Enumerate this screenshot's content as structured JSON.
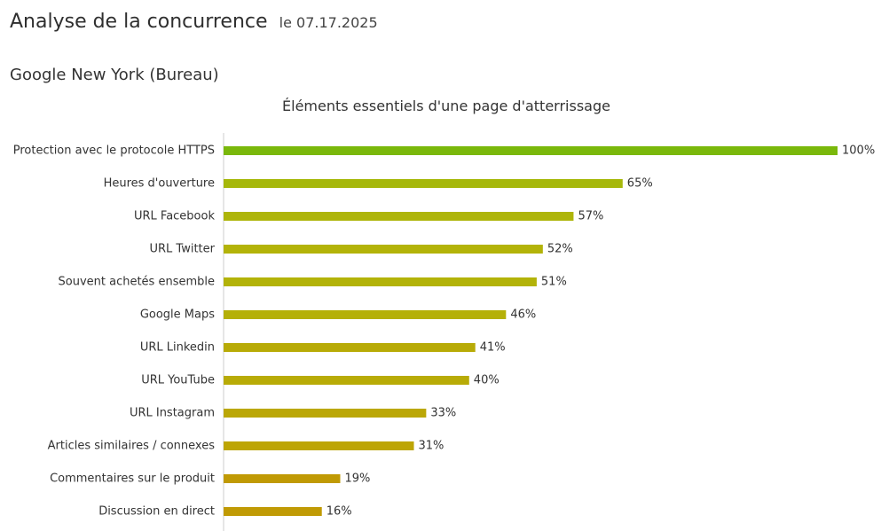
{
  "header": {
    "title": "Analyse de la concurrence",
    "date": "le 07.17.2025"
  },
  "section": {
    "title": "Google New York (Bureau)"
  },
  "chart_data": {
    "type": "bar",
    "orientation": "horizontal",
    "title": "Éléments essentiels d'une page d'atterrissage",
    "xlabel": "",
    "ylabel": "",
    "xlim": [
      0,
      100
    ],
    "grid": false,
    "legend": "none",
    "value_suffix": "%",
    "categories": [
      "Protection avec le protocole HTTPS",
      "Heures d'ouverture",
      "URL Facebook",
      "URL Twitter",
      "Souvent achetés ensemble",
      "Google Maps",
      "URL Linkedin",
      "URL YouTube",
      "URL Instagram",
      "Articles similaires / connexes",
      "Commentaires sur le produit",
      "Discussion en direct"
    ],
    "values": [
      100,
      65,
      57,
      52,
      51,
      46,
      41,
      40,
      33,
      31,
      19,
      16
    ],
    "colors": [
      "#7ab80b",
      "#a6b80b",
      "#aeb50a",
      "#b3b309",
      "#b3b309",
      "#b5b008",
      "#b8ab07",
      "#b8ab07",
      "#bba706",
      "#bda505",
      "#c09a04",
      "#c09a04"
    ],
    "label_color": "#333333",
    "axis_color": "#cccccc"
  }
}
